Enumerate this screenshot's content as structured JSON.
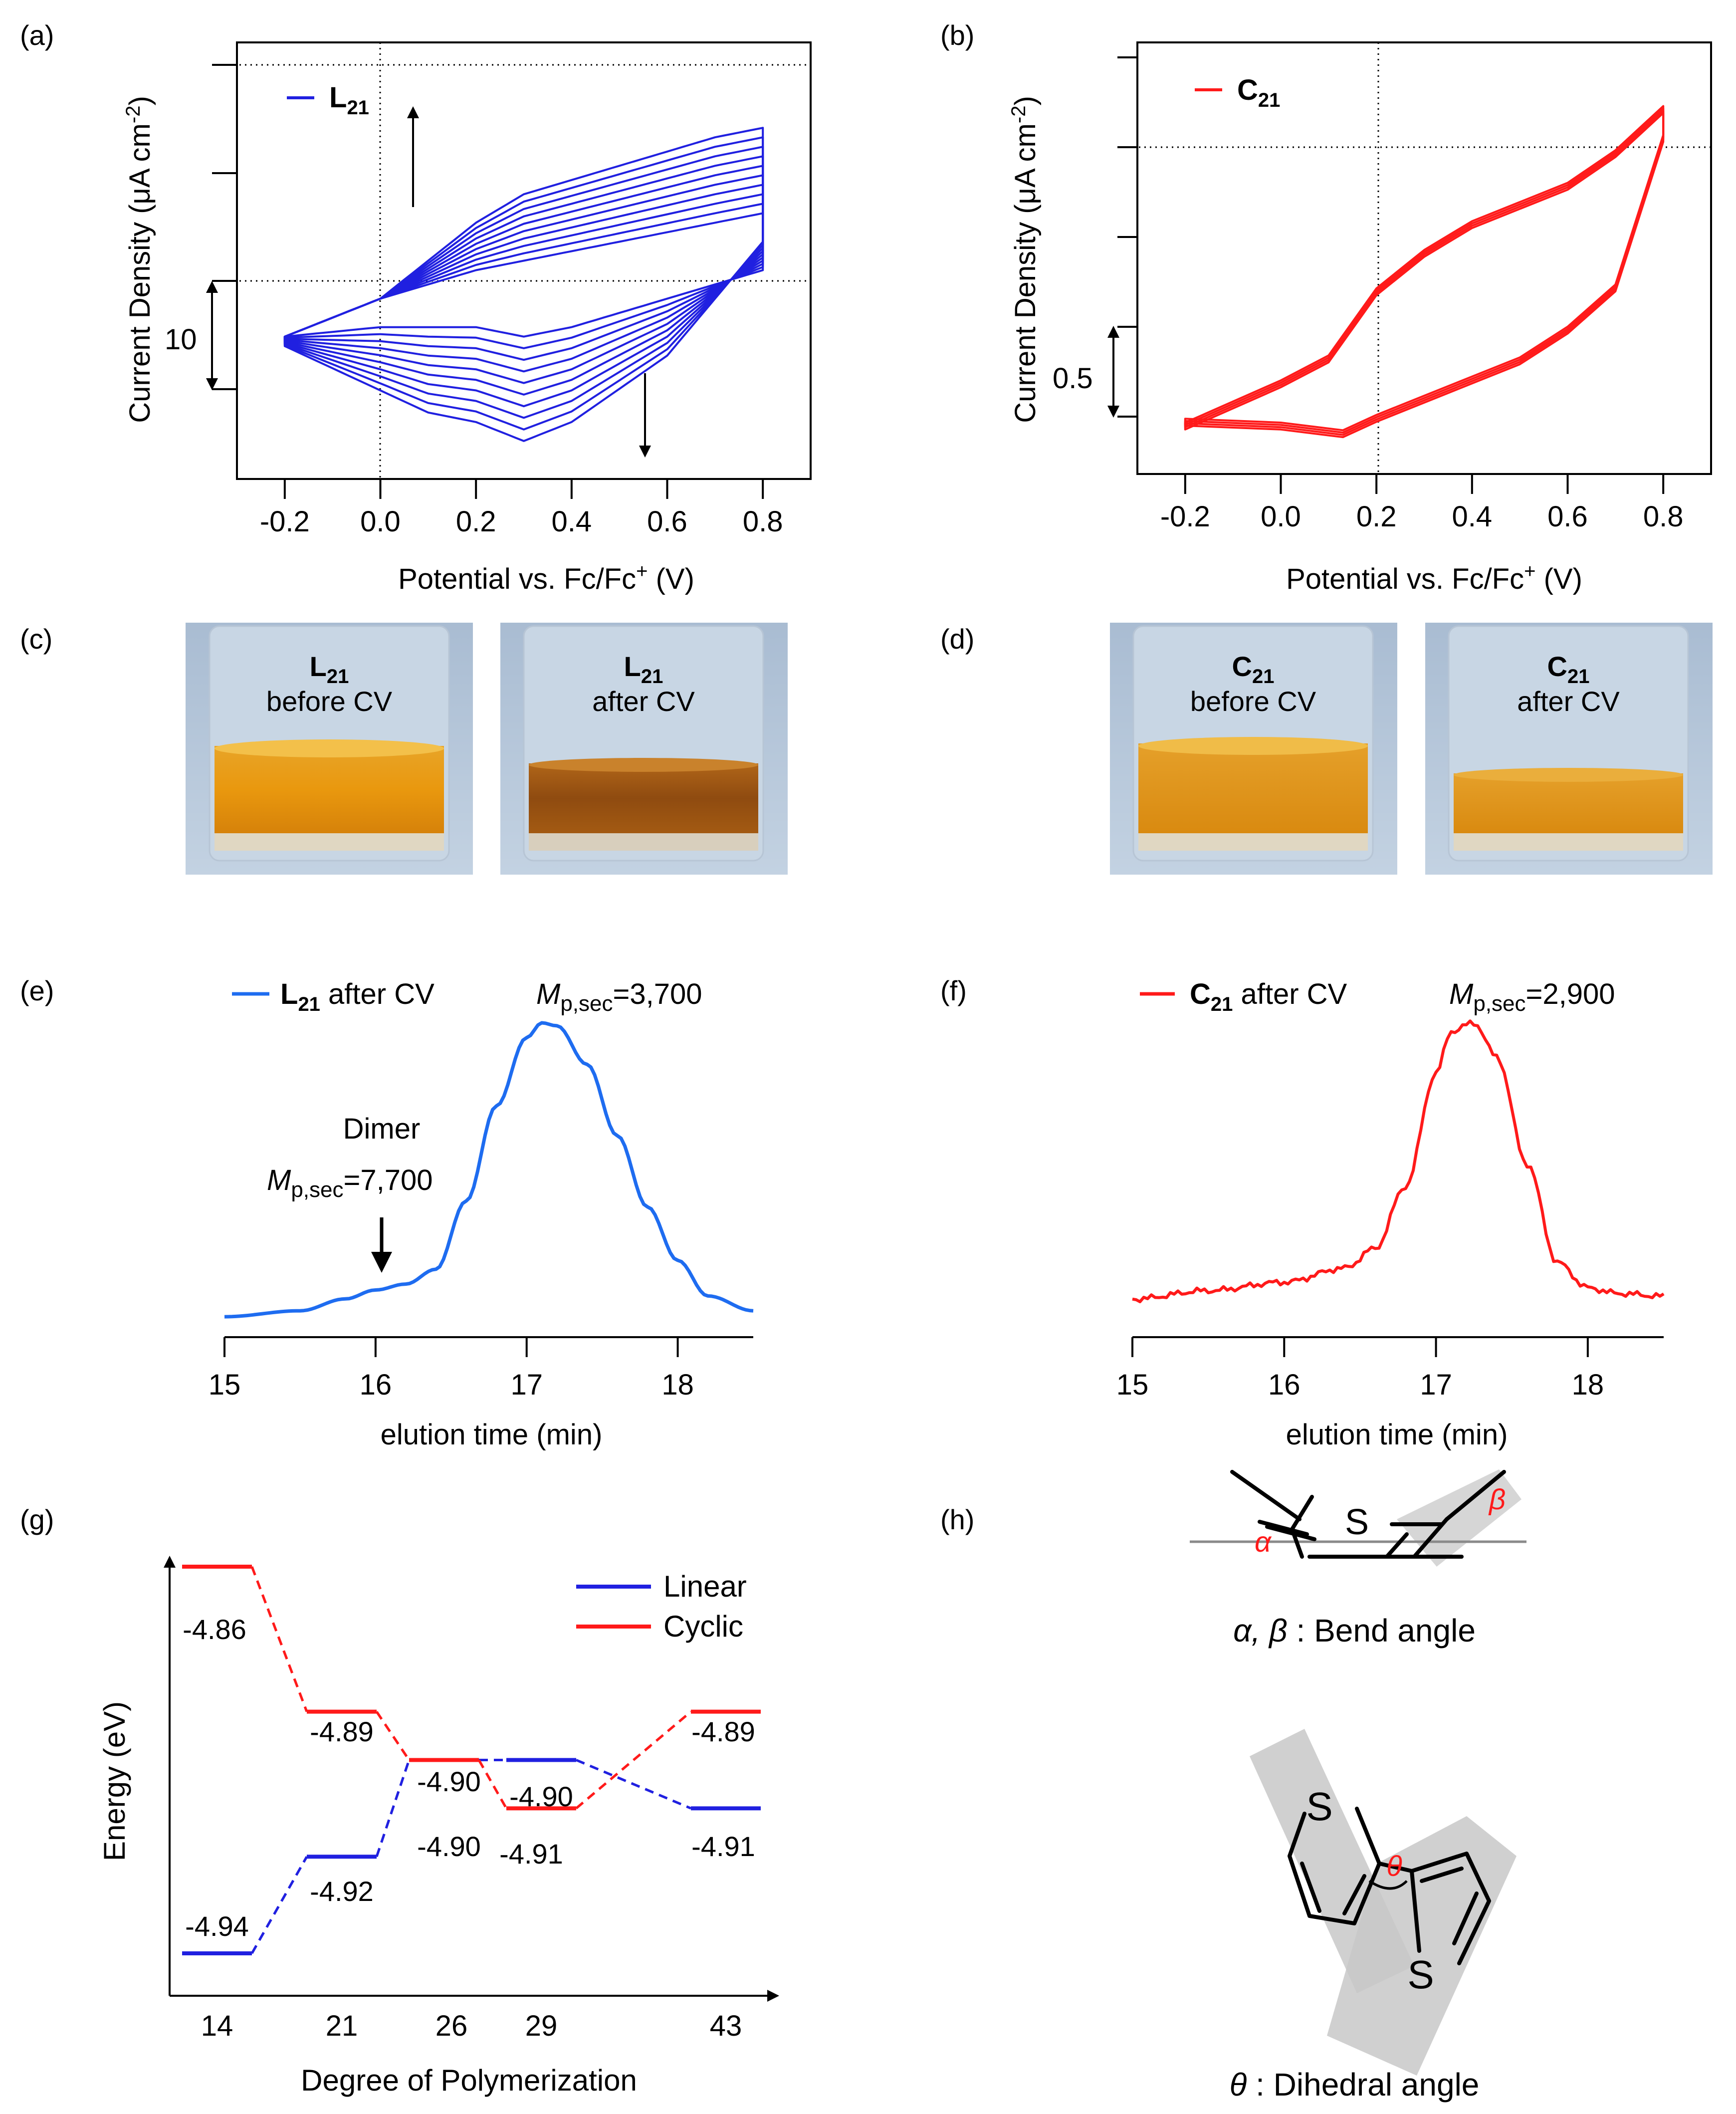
{
  "colors": {
    "blue": "#2020e0",
    "red": "#ff1a1a",
    "gpc_blue": "#1e6cf0",
    "dark": "#000000",
    "grey": "#9a9a9a"
  },
  "panel_labels": {
    "a": "(a)",
    "b": "(b)",
    "c": "(c)",
    "d": "(d)",
    "e": "(e)",
    "f": "(f)",
    "g": "(g)",
    "h": "(h)"
  },
  "cv_common": {
    "ylabel": "Current Density (μA cm",
    "ylabel_sup": "-2",
    "ylabel_end": ")",
    "xlabel": "Potential vs. Fc/Fc",
    "xlabel_sup": "+",
    "xlabel_end": " (V)",
    "xticks": [
      "-0.2",
      "0.0",
      "0.2",
      "0.4",
      "0.6",
      "0.8"
    ]
  },
  "panel_a": {
    "legend_main": "L",
    "legend_sub": "21",
    "scale_bar": "10"
  },
  "panel_b": {
    "legend_main": "C",
    "legend_sub": "21",
    "scale_bar": "0.5"
  },
  "photos": {
    "c1": {
      "main": "L",
      "sub": "21",
      "caption": "before CV"
    },
    "c2": {
      "main": "L",
      "sub": "21",
      "caption": "after CV"
    },
    "d1": {
      "main": "C",
      "sub": "21",
      "caption": "before CV"
    },
    "d2": {
      "main": "C",
      "sub": "21",
      "caption": "after CV"
    }
  },
  "gpc_common": {
    "xlabel": "elution time (min)",
    "xticks": [
      "15",
      "16",
      "17",
      "18"
    ]
  },
  "panel_e": {
    "legend_main": "L",
    "legend_sub": "21",
    "legend_rest": " after CV",
    "mp_label": "M",
    "mp_sub": "p,sec",
    "mp_value": "=3,700",
    "dimer": "Dimer",
    "dimer_mp_value": "=7,700"
  },
  "panel_f": {
    "legend_main": "C",
    "legend_sub": "21",
    "legend_rest": " after CV",
    "mp_label": "M",
    "mp_sub": "p,sec",
    "mp_value": "=2,900"
  },
  "panel_g": {
    "ylabel": "Energy (eV)",
    "xlabel": "Degree of Polymerization",
    "legend_linear": "Linear",
    "legend_cyclic": "Cyclic"
  },
  "panel_h": {
    "s_atom": "S",
    "alpha": "α",
    "beta": "β",
    "theta": "θ",
    "bend_caption_sym": "α, β",
    "bend_caption": " : Bend angle",
    "dihedral_caption_sym": "θ",
    "dihedral_caption": " : Dihedral angle"
  },
  "chart_data": [
    {
      "id": "a",
      "type": "line",
      "title": "",
      "xlabel": "Potential vs. Fc/Fc+ (V)",
      "ylabel": "Current Density (μA cm-2)",
      "xlim": [
        -0.3,
        0.9
      ],
      "ylim": [
        -19,
        27
      ],
      "series_note": "repeated CV scans, current increases with each cycle",
      "cycles": 10,
      "scan_1": {
        "forward": [
          [
            -0.2,
            -4
          ],
          [
            0.0,
            0
          ],
          [
            0.2,
            3
          ],
          [
            0.3,
            4
          ],
          [
            0.5,
            6
          ],
          [
            0.7,
            8
          ],
          [
            0.8,
            9
          ]
        ],
        "reverse": [
          [
            0.8,
            3
          ],
          [
            0.6,
            0
          ],
          [
            0.4,
            -3
          ],
          [
            0.3,
            -4
          ],
          [
            0.2,
            -3
          ],
          [
            0.0,
            -3
          ],
          [
            -0.2,
            -4
          ]
        ]
      },
      "scan_10": {
        "forward": [
          [
            -0.2,
            -4
          ],
          [
            0.0,
            0
          ],
          [
            0.1,
            4
          ],
          [
            0.2,
            8
          ],
          [
            0.3,
            11
          ],
          [
            0.5,
            14
          ],
          [
            0.7,
            17
          ],
          [
            0.8,
            18
          ]
        ],
        "reverse": [
          [
            0.8,
            6
          ],
          [
            0.7,
            0
          ],
          [
            0.6,
            -6
          ],
          [
            0.4,
            -13
          ],
          [
            0.3,
            -15
          ],
          [
            0.2,
            -13
          ],
          [
            0.1,
            -12
          ],
          [
            -0.2,
            -5
          ]
        ]
      }
    },
    {
      "id": "b",
      "type": "line",
      "title": "",
      "xlabel": "Potential vs. Fc/Fc+ (V)",
      "ylabel": "Current Density (μA cm-2)",
      "xlim": [
        -0.3,
        0.9
      ],
      "ylim": [
        -0.25,
        2.0
      ],
      "forward": [
        [
          -0.2,
          0.0
        ],
        [
          0.0,
          0.22
        ],
        [
          0.1,
          0.35
        ],
        [
          0.2,
          0.7
        ],
        [
          0.3,
          0.9
        ],
        [
          0.4,
          1.05
        ],
        [
          0.5,
          1.15
        ],
        [
          0.6,
          1.25
        ],
        [
          0.7,
          1.42
        ],
        [
          0.8,
          1.65
        ]
      ],
      "reverse": [
        [
          0.8,
          1.5
        ],
        [
          0.7,
          0.72
        ],
        [
          0.6,
          0.5
        ],
        [
          0.5,
          0.34
        ],
        [
          0.4,
          0.24
        ],
        [
          0.3,
          0.14
        ],
        [
          0.2,
          0.04
        ],
        [
          0.13,
          -0.04
        ],
        [
          0.0,
          0.0
        ],
        [
          -0.2,
          0.02
        ]
      ]
    },
    {
      "id": "e",
      "type": "line",
      "title": "",
      "xlabel": "elution time (min)",
      "xlim": [
        15,
        18.5
      ],
      "ylim": [
        0,
        1
      ],
      "series": [
        {
          "name": "L21 after CV",
          "x": [
            15,
            15.5,
            15.8,
            16,
            16.2,
            16.4,
            16.6,
            16.8,
            17,
            17.1,
            17.2,
            17.4,
            17.6,
            17.8,
            18,
            18.2,
            18.5
          ],
          "y": [
            0.01,
            0.03,
            0.07,
            0.1,
            0.12,
            0.17,
            0.4,
            0.72,
            0.95,
            1.0,
            0.99,
            0.86,
            0.62,
            0.38,
            0.2,
            0.08,
            0.03
          ]
        }
      ],
      "annotations": [
        "Mp,sec=3,700 at 17.2 min",
        "Dimer Mp,sec=7,700 at 16.0 min"
      ]
    },
    {
      "id": "f",
      "type": "line",
      "title": "",
      "xlabel": "elution time (min)",
      "xlim": [
        15,
        18.5
      ],
      "ylim": [
        0,
        1
      ],
      "series": [
        {
          "name": "C21 after CV",
          "x": [
            15,
            15.5,
            16,
            16.4,
            16.6,
            16.8,
            17,
            17.1,
            17.25,
            17.4,
            17.6,
            17.8,
            18,
            18.2,
            18.5
          ],
          "y": [
            0.02,
            0.05,
            0.08,
            0.13,
            0.2,
            0.42,
            0.82,
            0.97,
            1.0,
            0.88,
            0.5,
            0.15,
            0.06,
            0.04,
            0.03
          ]
        }
      ],
      "annotations": [
        "Mp,sec=2,900 at 17.2 min"
      ]
    },
    {
      "id": "g",
      "type": "line",
      "title": "",
      "xlabel": "Degree of Polymerization",
      "ylabel": "Energy (eV)",
      "categories": [
        "14",
        "21",
        "26",
        "29",
        "43"
      ],
      "ylim": [
        -4.955,
        -4.85
      ],
      "series": [
        {
          "name": "Linear",
          "values": [
            -4.94,
            -4.92,
            -4.9,
            -4.9,
            -4.91
          ],
          "labels": [
            "-4.94",
            "-4.92",
            "-4.90",
            "-4.90",
            "-4.91"
          ]
        },
        {
          "name": "Cyclic",
          "values": [
            -4.86,
            -4.89,
            -4.9,
            -4.91,
            -4.89
          ],
          "labels": [
            "-4.86",
            "-4.89",
            "-4.90",
            "-4.91",
            "-4.89"
          ]
        }
      ]
    }
  ]
}
